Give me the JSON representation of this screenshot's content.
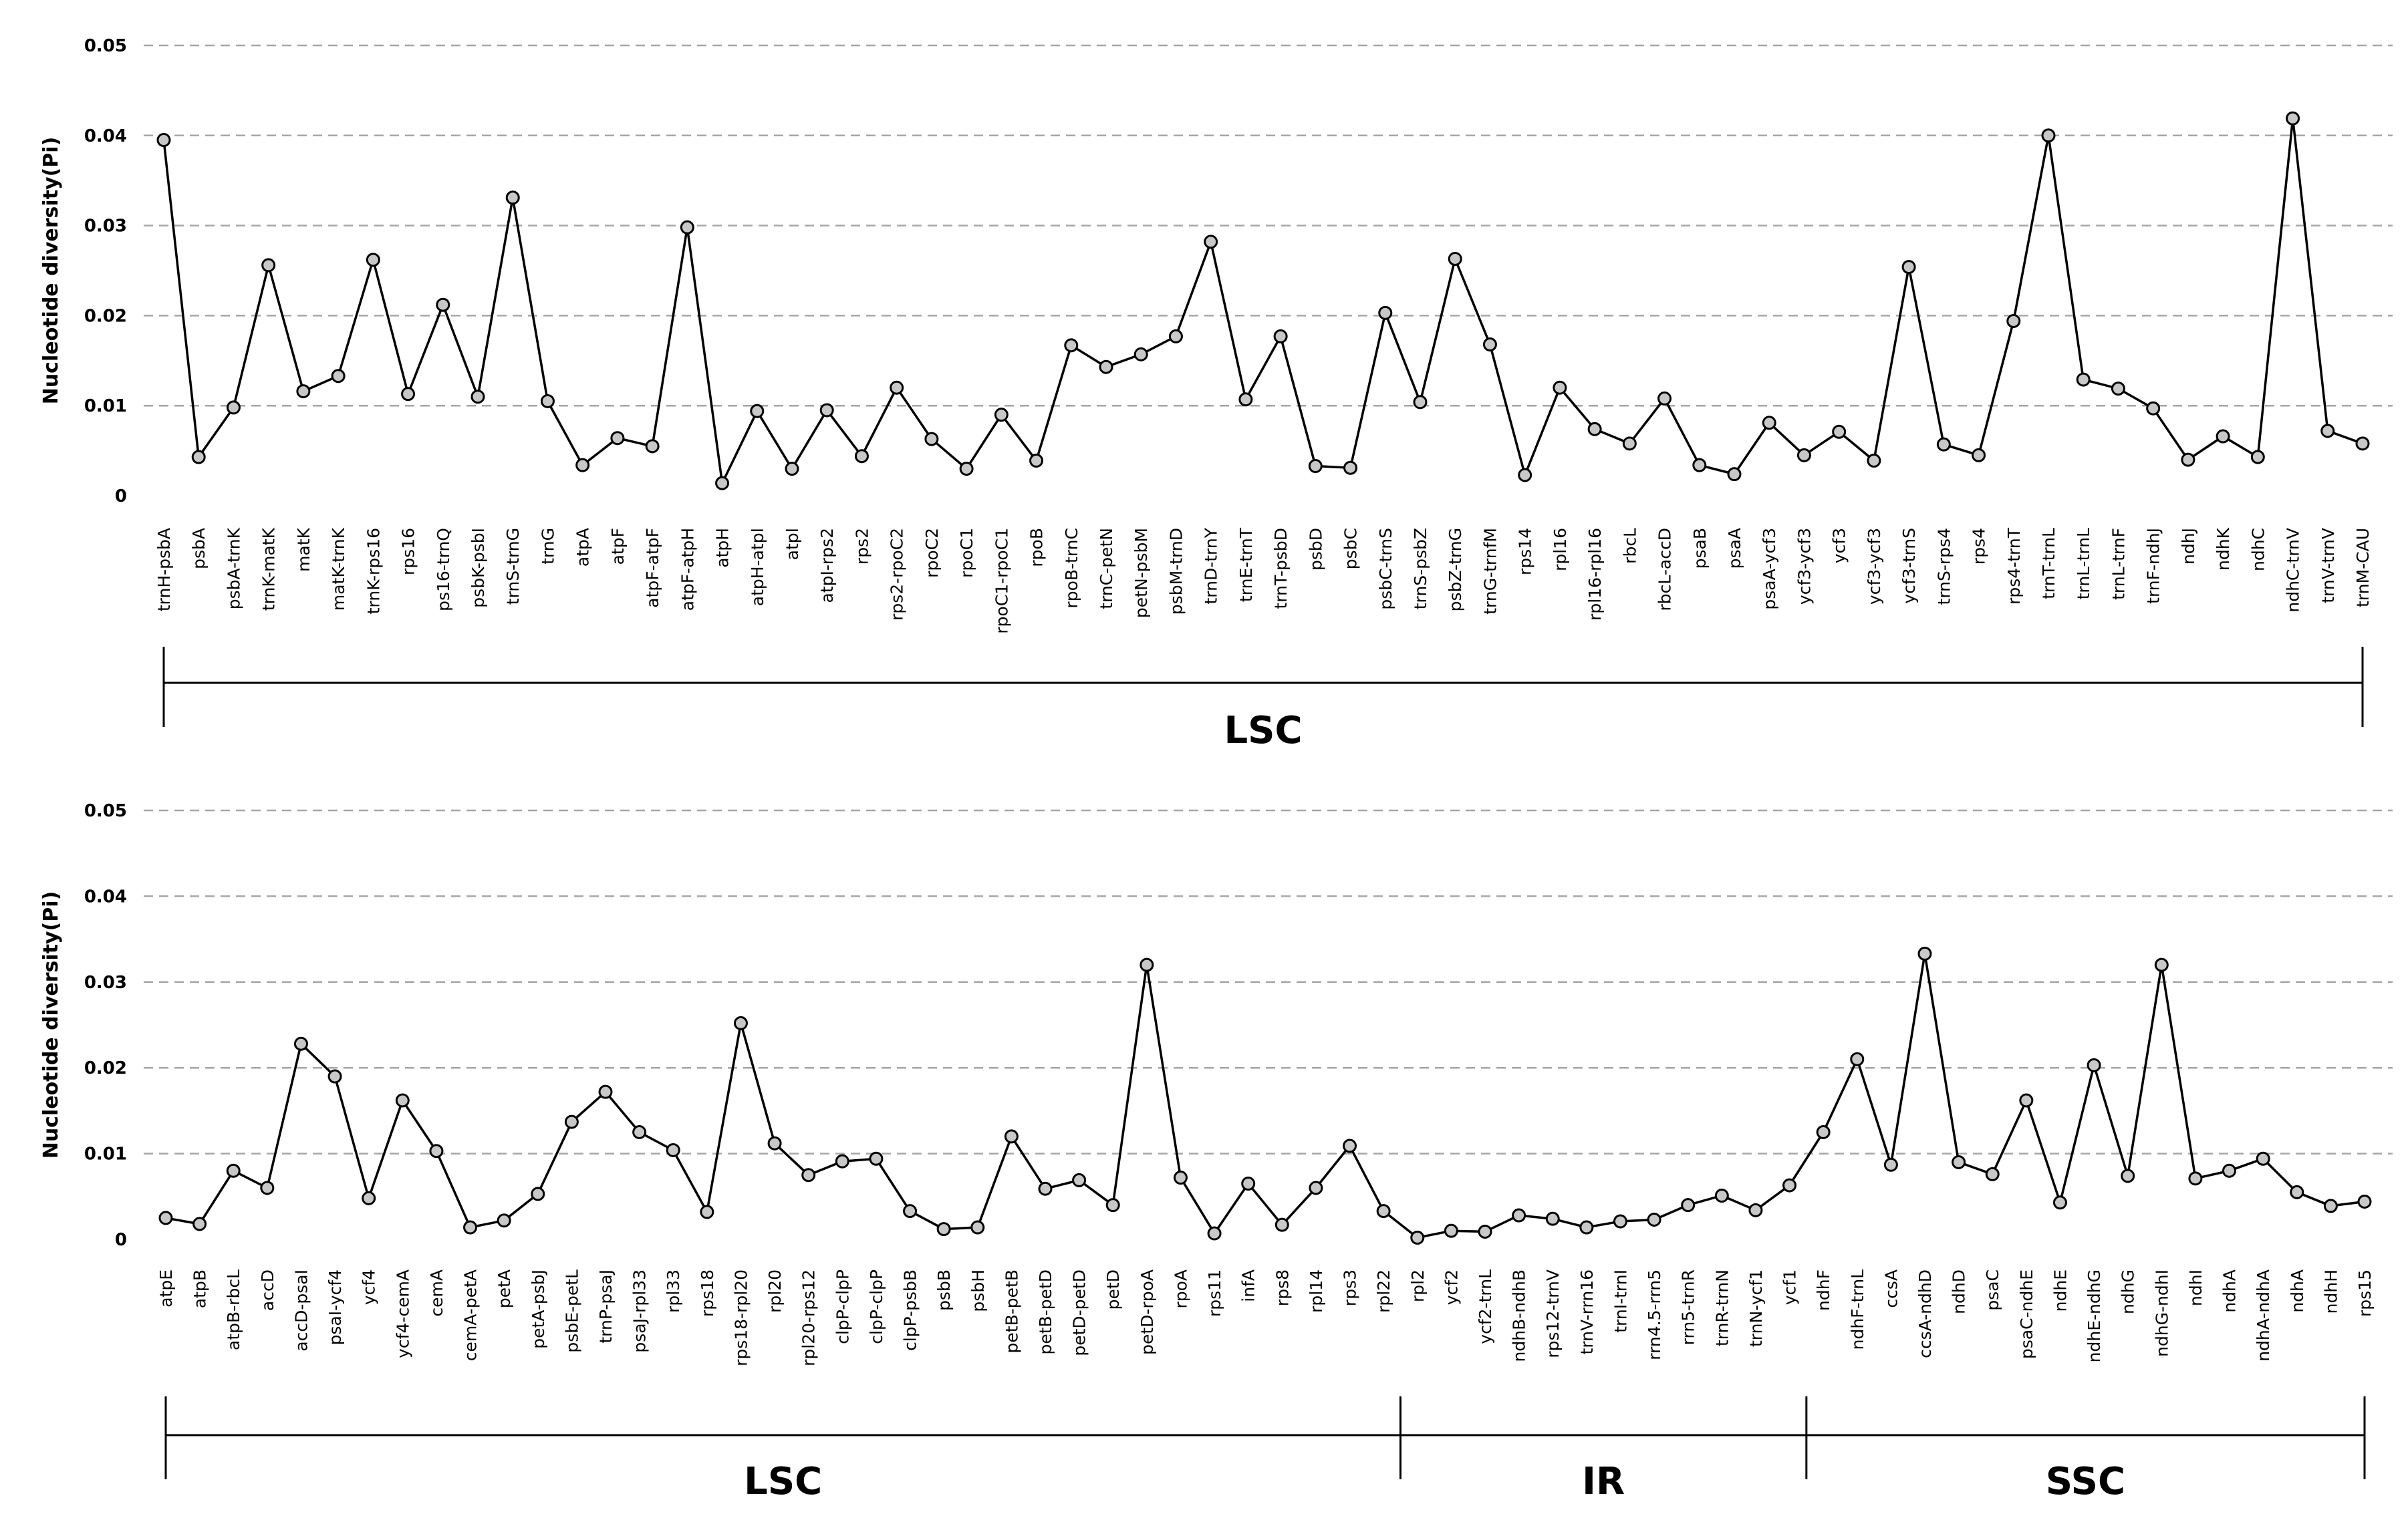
{
  "chart_data": [
    {
      "type": "line",
      "ylabel": "Nucleotide diversity(Pi)",
      "ylim": [
        0,
        0.05
      ],
      "yticks": [
        "0",
        "0.01",
        "0.02",
        "0.03",
        "0.04",
        "0.05"
      ],
      "grid": true,
      "categories": [
        "trnH-psbA",
        "psbA",
        "psbA-trnK",
        "trnK-matK",
        "matK",
        "matK-trnK",
        "trnK-rps16",
        "rps16",
        "ps16-trnQ",
        "psbK-psbI",
        "trnS-trnG",
        "trnG",
        "atpA",
        "atpF",
        "atpF-atpF",
        "atpF-atpH",
        "atpH",
        "atpH-atpI",
        "atpI",
        "atpI-rps2",
        "rps2",
        "rps2-rpoC2",
        "rpoC2",
        "rpoC1",
        "rpoC1-rpoC1",
        "rpoB",
        "rpoB-trnC",
        "trnC-petN",
        "petN-psbM",
        "psbM-trnD",
        "trnD-trnY",
        "trnE-trnT",
        "trnT-psbD",
        "psbD",
        "psbC",
        "psbC-trnS",
        "trnS-psbZ",
        "psbZ-trnG",
        "trnG-trnfM",
        "rps14",
        "rpl16",
        "rpl16-rpl16",
        "rbcL",
        "rbcL-accD",
        "psaB",
        "psaA",
        "psaA-ycf3",
        "ycf3-ycf3",
        "ycf3",
        "ycf3-ycf3",
        "ycf3-trnS",
        "trnS-rps4",
        "rps4",
        "rps4-trnT",
        "trnT-trnL",
        "trnL-trnL",
        "trnL-trnF",
        "trnF-ndhJ",
        "ndhJ",
        "ndhK",
        "ndhC",
        "ndhC-trnV",
        "trnV-trnV",
        "trnM-CAU"
      ],
      "values": [
        0.0395,
        0.0043,
        0.0098,
        0.0256,
        0.0116,
        0.0133,
        0.0262,
        0.0113,
        0.0212,
        0.011,
        0.0331,
        0.0105,
        0.0034,
        0.0064,
        0.0055,
        0.0298,
        0.0014,
        0.0094,
        0.003,
        0.0095,
        0.0044,
        0.012,
        0.0063,
        0.003,
        0.009,
        0.0039,
        0.0167,
        0.0143,
        0.0157,
        0.0177,
        0.0282,
        0.0107,
        0.0177,
        0.0033,
        0.0031,
        0.0203,
        0.0104,
        0.0263,
        0.0168,
        0.0023,
        0.012,
        0.0074,
        0.0058,
        0.0108,
        0.0034,
        0.0024,
        0.0081,
        0.0045,
        0.0071,
        0.0039,
        0.0254,
        0.0057,
        0.0045,
        0.0194,
        0.04,
        0.0129,
        0.0119,
        0.0097,
        0.004,
        0.0066,
        0.0043,
        0.0419,
        0.0072,
        0.0058
      ],
      "regions": [
        {
          "label": "LSC",
          "start": "trnH-psbA",
          "end": "trnM-CAU"
        }
      ]
    },
    {
      "type": "line",
      "ylabel": "Nucleotide diversity(Pi)",
      "ylim": [
        0,
        0.05
      ],
      "yticks": [
        "0",
        "0.01",
        "0.02",
        "0.03",
        "0.04",
        "0.05"
      ],
      "grid": true,
      "categories": [
        "atpE",
        "atpB",
        "atpB-rbcL",
        "accD",
        "accD-psaI",
        "psaI-ycf4",
        "ycf4",
        "ycf4-cemA",
        "cemA",
        "cemA-petA",
        "petA",
        "petA-psbJ",
        "psbE-petL",
        "trnP-psaJ",
        "psaJ-rpl33",
        "rpl33",
        "rps18",
        "rps18-rpl20",
        "rpl20",
        "rpl20-rps12",
        "clpP-clpP",
        "clpP-clpP",
        "clpP-psbB",
        "psbB",
        "psbH",
        "petB-petB",
        "petB-petD",
        "petD-petD",
        "petD",
        "petD-rpoA",
        "rpoA",
        "rps11",
        "infA",
        "rps8",
        "rpl14",
        "rps3",
        "rpl22",
        "rpl2",
        "ycf2",
        "ycf2-trnL",
        "ndhB-ndhB",
        "rps12-trnV",
        "trnV-rrn16",
        "trnI-trnI",
        "rrn4.5-rrn5",
        "rrn5-trnR",
        "trnR-trnN",
        "trnN-ycf1",
        "ycf1",
        "ndhF",
        "ndhF-trnL",
        "ccsA",
        "ccsA-ndhD",
        "ndhD",
        "psaC",
        "psaC-ndhE",
        "ndhE",
        "ndhE-ndhG",
        "ndhG",
        "ndhG-ndhI",
        "ndhI",
        "ndhA",
        "ndhA-ndhA",
        "ndhA",
        "ndhH",
        "rps15"
      ],
      "values": [
        0.0025,
        0.0018,
        0.008,
        0.006,
        0.0228,
        0.019,
        0.0048,
        0.0162,
        0.0103,
        0.0014,
        0.0022,
        0.0053,
        0.0137,
        0.0172,
        0.0125,
        0.0104,
        0.0032,
        0.0252,
        0.0112,
        0.0075,
        0.0091,
        0.0094,
        0.0033,
        0.0012,
        0.0014,
        0.012,
        0.0059,
        0.0069,
        0.004,
        0.032,
        0.0072,
        0.0007,
        0.0065,
        0.0017,
        0.006,
        0.0109,
        0.0033,
        0.0002,
        0.001,
        0.0009,
        0.0028,
        0.0024,
        0.0014,
        0.0021,
        0.0023,
        0.004,
        0.0051,
        0.0034,
        0.0063,
        0.0125,
        0.021,
        0.0087,
        0.0333,
        0.009,
        0.0076,
        0.0162,
        0.0043,
        0.0203,
        0.0074,
        0.032,
        0.0071,
        0.008,
        0.0094,
        0.0055,
        0.0039,
        0.0044
      ],
      "regions": [
        {
          "label": "LSC",
          "start": "atpE",
          "end": "rpl22"
        },
        {
          "label": "IR",
          "start": "rpl2",
          "end": "ycf1"
        },
        {
          "label": "SSC",
          "start": "ndhF",
          "end": "rps15"
        }
      ]
    }
  ]
}
